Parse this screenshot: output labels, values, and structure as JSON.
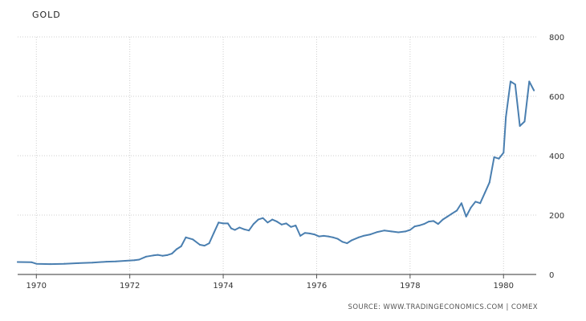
{
  "chart_data": {
    "type": "line",
    "title": "GOLD",
    "source": "SOURCE: WWW.TRADINGECONOMICS.COM | COMEX",
    "xlim": [
      1969.6,
      1980.7
    ],
    "ylim": [
      0,
      800
    ],
    "x_ticks": [
      1970,
      1972,
      1974,
      1976,
      1978,
      1980
    ],
    "y_ticks": [
      0,
      200,
      400,
      600,
      800
    ],
    "grid": true,
    "line_color": "#4a7fb0",
    "series": [
      {
        "x": [
          1969.6,
          1969.9,
          1970.0,
          1970.3,
          1970.6,
          1970.9,
          1971.2,
          1971.5,
          1971.7,
          1971.9,
          1972.1,
          1972.2,
          1972.35,
          1972.5,
          1972.6,
          1972.7,
          1972.8,
          1972.9,
          1973.0,
          1973.1,
          1973.2,
          1973.35,
          1973.5,
          1973.6,
          1973.7,
          1973.8,
          1973.9,
          1974.0,
          1974.1,
          1974.17,
          1974.25,
          1974.35,
          1974.45,
          1974.55,
          1974.65,
          1974.75,
          1974.85,
          1974.95,
          1975.05,
          1975.15,
          1975.25,
          1975.35,
          1975.45,
          1975.55,
          1975.65,
          1975.75,
          1975.85,
          1975.95,
          1976.05,
          1976.15,
          1976.25,
          1976.35,
          1976.45,
          1976.55,
          1976.65,
          1976.75,
          1976.9,
          1977.0,
          1977.15,
          1977.3,
          1977.45,
          1977.6,
          1977.75,
          1977.9,
          1978.0,
          1978.1,
          1978.2,
          1978.3,
          1978.4,
          1978.5,
          1978.6,
          1978.7,
          1978.8,
          1978.9,
          1979.0,
          1979.1,
          1979.2,
          1979.3,
          1979.4,
          1979.5,
          1979.6,
          1979.7,
          1979.8,
          1979.9,
          1980.0,
          1980.05,
          1980.15,
          1980.25,
          1980.35,
          1980.45,
          1980.55,
          1980.65
        ],
        "y": [
          42,
          41,
          36,
          35,
          36,
          38,
          40,
          43,
          44,
          46,
          48,
          50,
          60,
          64,
          66,
          63,
          65,
          70,
          85,
          95,
          125,
          118,
          100,
          97,
          105,
          140,
          175,
          172,
          172,
          155,
          150,
          158,
          152,
          148,
          170,
          185,
          190,
          175,
          185,
          178,
          168,
          172,
          160,
          165,
          130,
          140,
          138,
          135,
          128,
          130,
          128,
          125,
          120,
          110,
          105,
          115,
          125,
          130,
          135,
          143,
          148,
          145,
          142,
          145,
          150,
          162,
          165,
          170,
          178,
          180,
          170,
          185,
          195,
          205,
          215,
          240,
          195,
          225,
          245,
          240,
          275,
          310,
          395,
          390,
          410,
          530,
          650,
          640,
          500,
          515,
          650,
          620
        ]
      }
    ]
  }
}
